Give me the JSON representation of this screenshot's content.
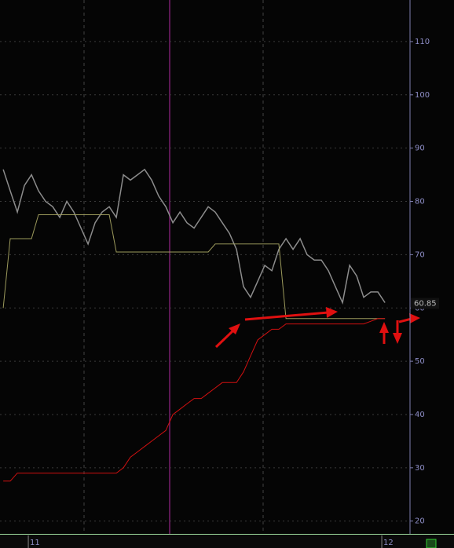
{
  "chart_data": {
    "type": "line",
    "x": [
      10.92,
      10.94,
      10.96,
      10.98,
      11.0,
      11.02,
      11.04,
      11.06,
      11.08,
      11.1,
      11.12,
      11.14,
      11.16,
      11.18,
      11.2,
      11.22,
      11.24,
      11.26,
      11.28,
      11.3,
      11.32,
      11.34,
      11.36,
      11.38,
      11.4,
      11.42,
      11.44,
      11.46,
      11.48,
      11.5,
      11.52,
      11.54,
      11.56,
      11.58,
      11.6,
      11.62,
      11.64,
      11.66,
      11.68,
      11.7,
      11.72,
      11.74,
      11.76,
      11.78,
      11.8,
      11.82,
      11.84,
      11.86,
      11.88,
      11.9,
      11.92,
      11.94,
      11.96,
      11.98,
      12.0
    ],
    "series": [
      {
        "color": "#8c8c8c",
        "values": [
          86,
          82,
          78,
          83,
          85,
          82,
          80,
          79,
          77,
          80,
          78,
          75,
          72,
          76,
          78,
          79,
          77,
          85,
          84,
          85,
          86,
          84,
          81,
          79,
          76,
          78,
          76,
          75,
          77,
          79,
          78,
          76,
          74,
          71,
          64,
          62,
          65,
          68,
          67,
          71,
          73,
          71,
          73,
          70,
          69,
          69,
          67,
          64,
          61,
          68,
          66,
          62,
          63,
          63,
          61
        ]
      },
      {
        "color": "#9c9a5c",
        "values": [
          60,
          73,
          73,
          73,
          73,
          77.5,
          77.5,
          77.5,
          77.5,
          77.5,
          77.5,
          77.5,
          77.5,
          77.5,
          77.5,
          77.5,
          70.5,
          70.5,
          70.5,
          70.5,
          70.5,
          70.5,
          70.5,
          70.5,
          70.5,
          70.5,
          70.5,
          70.5,
          70.5,
          70.5,
          72,
          72,
          72,
          72,
          72,
          72,
          72,
          72,
          72,
          72,
          58,
          58,
          58,
          58,
          58,
          58,
          58,
          58,
          58,
          58,
          58,
          58,
          58,
          58,
          58
        ]
      },
      {
        "color": "#d01010",
        "values": [
          27.5,
          27.5,
          29,
          29,
          29,
          29,
          29,
          29,
          29,
          29,
          29,
          29,
          29,
          29,
          29,
          29,
          29,
          30,
          32,
          33,
          34,
          35,
          36,
          37,
          40,
          41,
          42,
          43,
          43,
          44,
          45,
          46,
          46,
          46,
          48,
          51,
          54,
          55,
          56,
          56,
          57,
          57,
          57,
          57,
          57,
          57,
          57,
          57,
          57,
          57,
          57,
          57,
          57.5,
          58,
          58
        ]
      }
    ],
    "last_price": 60.85,
    "xlim": [
      10.911,
      12.071
    ],
    "xticks": [
      11,
      12
    ],
    "ylim": [
      17.6,
      117.8
    ],
    "yticks": [
      20,
      30,
      40,
      50,
      60,
      70,
      80,
      90,
      100,
      110
    ],
    "grid": true
  }
}
